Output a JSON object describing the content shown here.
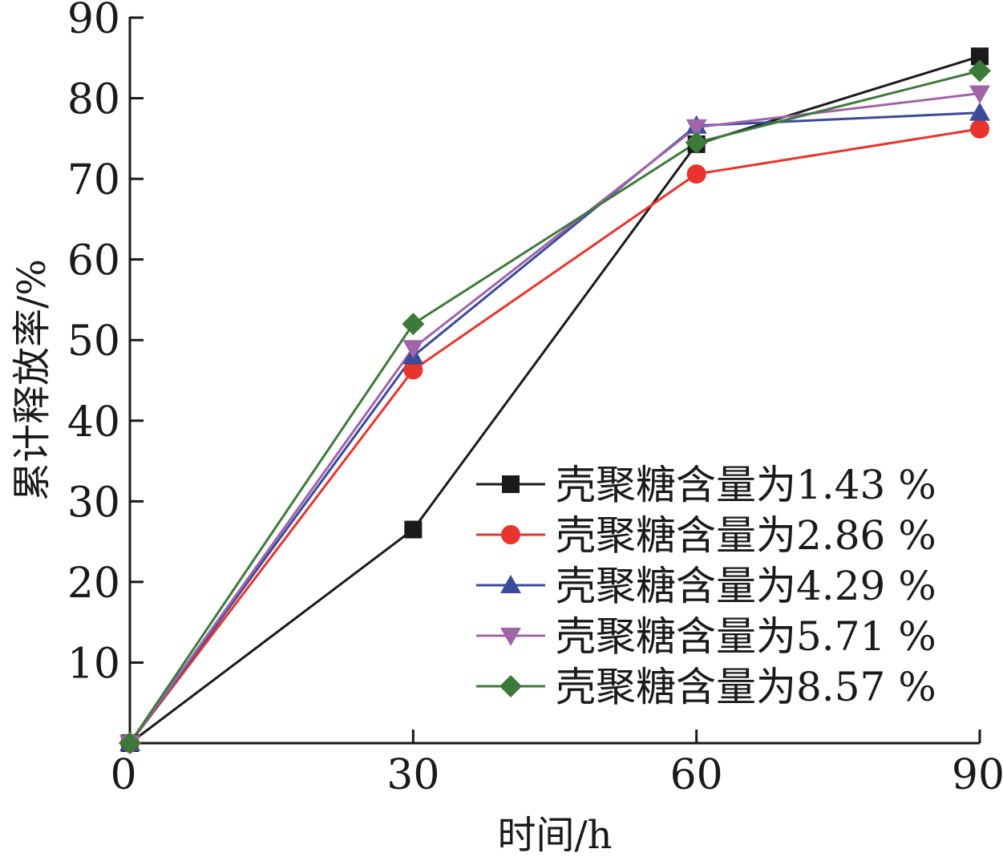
{
  "chart_data": {
    "type": "line",
    "xlabel": "时间/h",
    "ylabel": "累计释放率/%",
    "x": [
      0,
      30,
      60,
      90
    ],
    "xlim": [
      0,
      90
    ],
    "ylim": [
      0,
      90
    ],
    "xticks": [
      "0",
      "30",
      "60",
      "90"
    ],
    "yticks": [
      "10",
      "20",
      "30",
      "40",
      "50",
      "60",
      "70",
      "80",
      "90"
    ],
    "grid": false,
    "legend_position": "bottom-right",
    "series": [
      {
        "name": "壳聚糖含量为1.43 %",
        "color": "#1a1a1a",
        "marker": "square",
        "values": [
          0,
          26.5,
          74.3,
          85.2
        ]
      },
      {
        "name": "壳聚糖含量为2.86 %",
        "color": "#e8342c",
        "marker": "circle",
        "values": [
          0,
          46.3,
          70.6,
          76.2
        ]
      },
      {
        "name": "壳聚糖含量为4.29 %",
        "color": "#3a4a9c",
        "marker": "triangle-up",
        "values": [
          0,
          48.0,
          76.6,
          78.2
        ]
      },
      {
        "name": "壳聚糖含量为5.71 %",
        "color": "#a064a8",
        "marker": "triangle-down",
        "values": [
          0,
          49.0,
          76.4,
          80.6
        ]
      },
      {
        "name": "壳聚糖含量为8.57 %",
        "color": "#3d7a3a",
        "marker": "diamond",
        "values": [
          0,
          52.0,
          74.5,
          83.4
        ]
      }
    ]
  }
}
